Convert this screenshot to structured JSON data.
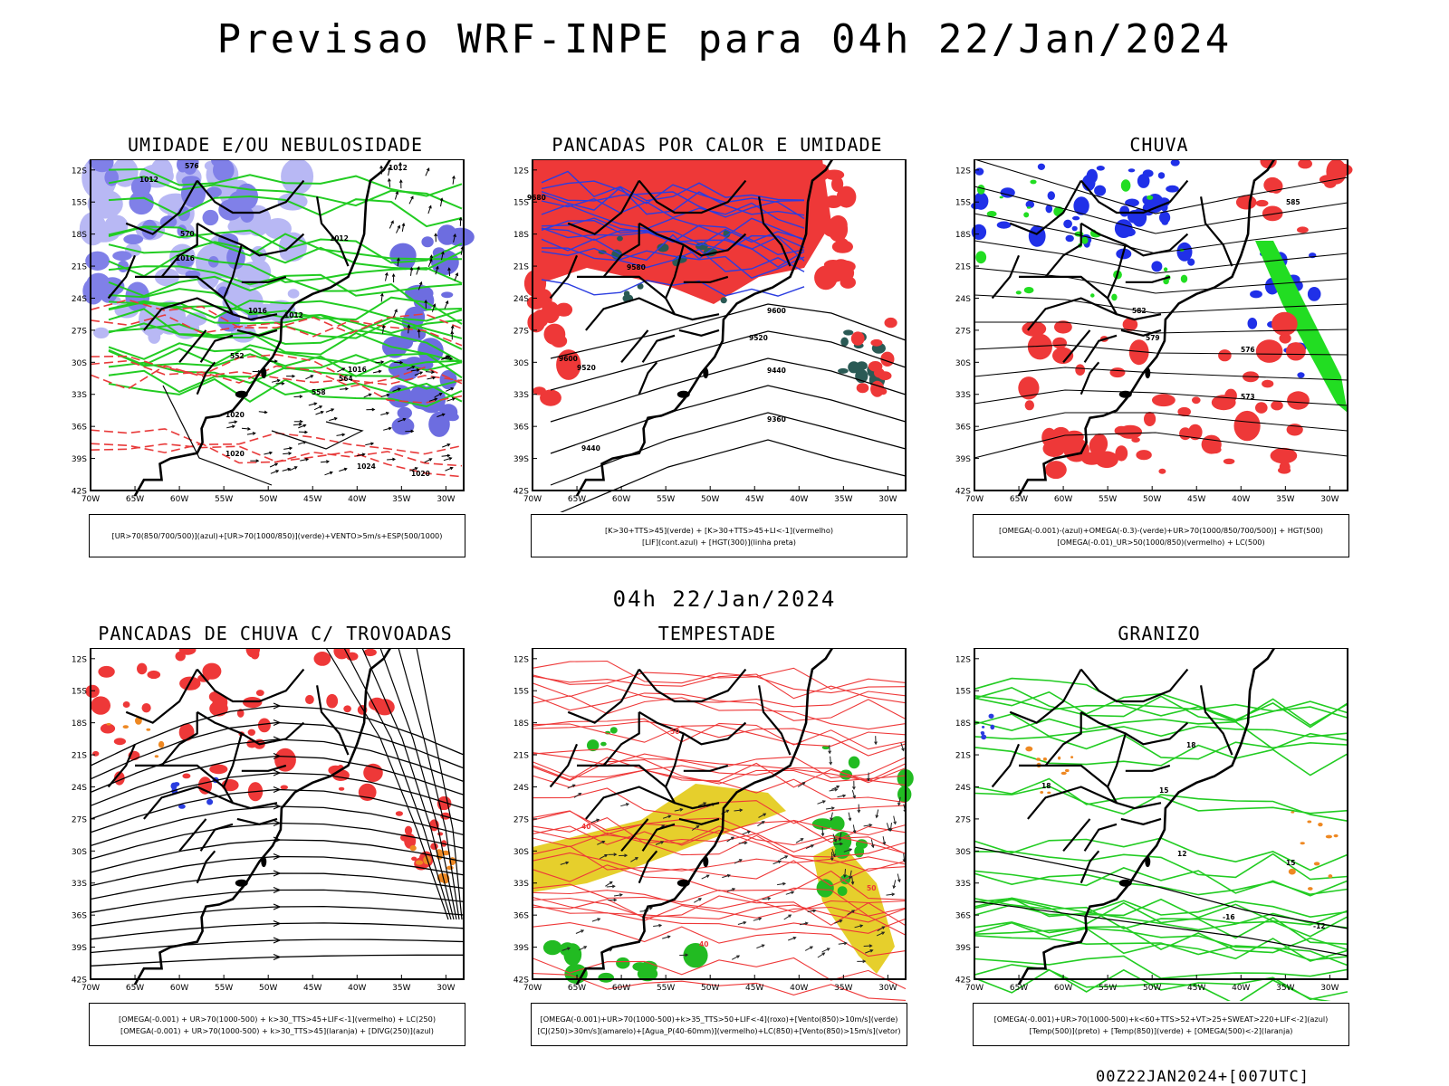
{
  "header": {
    "title": "Previsao WRF-INPE  para 04h 22/Jan/2024"
  },
  "mid_title": "04h 22/Jan/2024",
  "footer": "00Z22JAN2024+[007UTC]",
  "axes": {
    "lat_labels": [
      "12S",
      "15S",
      "18S",
      "21S",
      "24S",
      "27S",
      "30S",
      "33S",
      "36S",
      "39S",
      "42S"
    ],
    "lon_labels": [
      "70W",
      "65W",
      "60W",
      "55W",
      "50W",
      "45W",
      "40W",
      "35W",
      "30W"
    ]
  },
  "panels": [
    {
      "title": "UMIDADE E/OU NEBULOSIDADE",
      "legend": [
        "[UR>70(850/700/500)](azul)+[UR>70(1000/850)](verde)+VENTO>5m/s+ESP(500/1000)"
      ],
      "labels": [
        "1012",
        "1012",
        "1012",
        "1016",
        "1016",
        "1020",
        "1020",
        "1024",
        "1020",
        "1016",
        "1012",
        "576",
        "570",
        "564",
        "558",
        "552"
      ]
    },
    {
      "title": "PANCADAS POR CALOR E UMIDADE",
      "legend": [
        "[K>30+TTS>45](verde) + [K>30+TTS>45+LI<-1](vermelho)",
        "[LIF](cont.azul) + [HGT(300)](linha preta)"
      ],
      "labels": [
        "9600",
        "9520",
        "9440",
        "9360",
        "9440",
        "9520",
        "9600",
        "9680",
        "9580"
      ]
    },
    {
      "title": "CHUVA",
      "legend": [
        "[OMEGA(-0.001)-(azul)+OMEGA(-0.3)-(verde)+UR>70(1000/850/700/500)] + HGT(500)",
        "[OMEGA(-0.01)_UR>50(1000/850)(vermelho) + LC(500)"
      ],
      "labels": [
        "585",
        "576",
        "573",
        "579",
        "582"
      ]
    },
    {
      "title": "PANCADAS DE CHUVA C/ TROVOADAS",
      "legend": [
        "[OMEGA(-0.001) + UR>70(1000-500) + k>30_TTS>45+LIF<-1](vermelho) + LC(250)",
        "[OMEGA(-0.001) + UR>70(1000-500) + k>30_TTS>45](laranja) + [DIVG(250)](azul)"
      ],
      "labels": []
    },
    {
      "title": "TEMPESTADE",
      "legend": [
        "[OMEGA(-0.001)+UR>70(1000-500)+k>35_TTS>50+LIF<-4](roxo)+[Vento(850)>10m/s](verde)",
        "[CJ(250)>30m/s](amarelo)+[Agua_P(40-60mm)](vermelho)+LC(850)+[Vento(850)>15m/s](vetor)"
      ],
      "labels": [
        "40",
        "50",
        "40",
        "50"
      ]
    },
    {
      "title": "GRANIZO",
      "legend": [
        "[OMEGA(-0.001)+UR>70(1000-500)+k<60+TTS>52+VT>25+SWEAT>220+LIF<-2](azul)",
        "[Temp(500)](preto) + [Temp(850)](verde) + [OMEGA(500)<-2](laranja)"
      ],
      "labels": [
        "-16",
        "-12",
        "18",
        "15",
        "12",
        "15",
        "18"
      ]
    }
  ]
}
